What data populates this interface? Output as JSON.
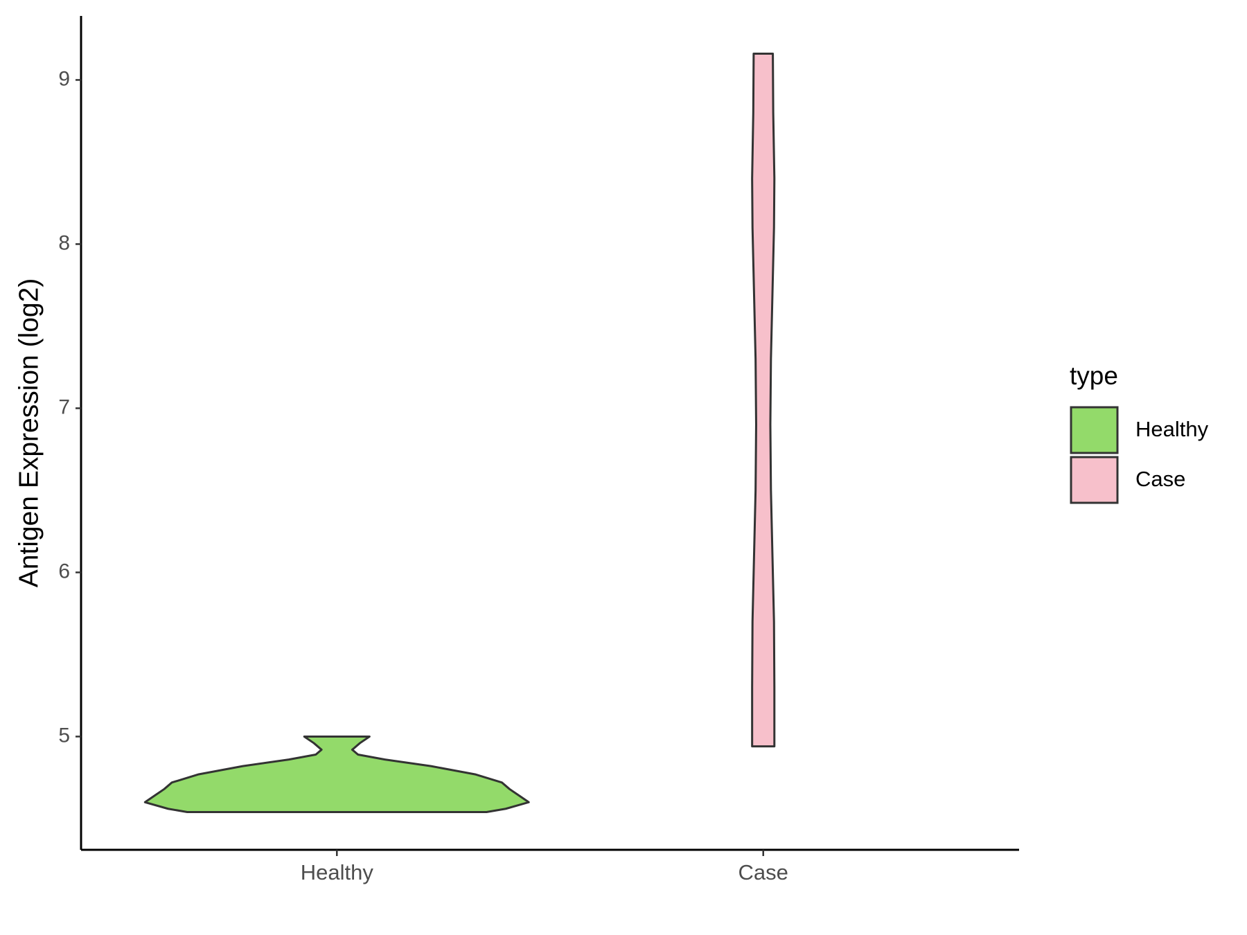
{
  "chart_data": {
    "type": "violin",
    "y_label": "Antigen Expression (log2)",
    "categories": [
      "Healthy",
      "Case"
    ],
    "legend_title": "type",
    "legend_position": "right",
    "ylim": [
      4.31,
      9.39
    ],
    "yticks": [
      5,
      6,
      7,
      8,
      9
    ],
    "grid": false,
    "series": [
      {
        "name": "Healthy",
        "color": "#93da6a",
        "y": [
          4.54,
          4.56,
          4.6,
          4.64,
          4.68,
          4.72,
          4.77,
          4.82,
          4.86,
          4.89,
          4.92,
          4.96,
          5.0
        ],
        "density": [
          0.78,
          0.88,
          1.0,
          0.95,
          0.9,
          0.86,
          0.72,
          0.49,
          0.25,
          0.11,
          0.08,
          0.12,
          0.17
        ]
      },
      {
        "name": "Case",
        "color": "#f7c0cb",
        "y": [
          4.94,
          5.3,
          5.7,
          6.1,
          6.5,
          6.9,
          7.3,
          7.7,
          8.1,
          8.4,
          8.8,
          9.16
        ],
        "density": [
          0.058,
          0.058,
          0.056,
          0.048,
          0.04,
          0.037,
          0.04,
          0.048,
          0.056,
          0.058,
          0.052,
          0.05
        ]
      }
    ]
  }
}
